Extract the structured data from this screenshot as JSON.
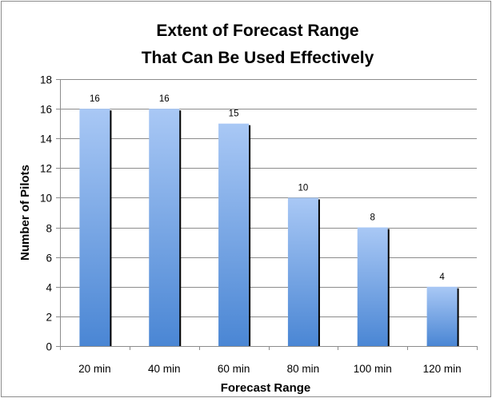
{
  "chart_data": {
    "type": "bar",
    "title": [
      "Extent of Forecast Range",
      "That Can Be Used Effectively"
    ],
    "xlabel": "Forecast Range",
    "ylabel": "Number of Pilots",
    "categories": [
      "20 min",
      "40 min",
      "60 min",
      "80 min",
      "100 min",
      "120 min"
    ],
    "values": [
      16,
      16,
      15,
      10,
      8,
      4
    ],
    "data_labels": [
      "16",
      "16",
      "15",
      "10",
      "8",
      "4"
    ],
    "ylim": [
      0,
      18
    ],
    "yticks": [
      0,
      2,
      4,
      6,
      8,
      10,
      12,
      14,
      16,
      18
    ],
    "grid": "horizontal",
    "legend": "none",
    "colors": {
      "bar_top": "#a9c8f5",
      "bar_bottom": "#4a86d4",
      "bar_shadow": "#000000",
      "gridline": "#8c8c8c",
      "axis": "#8c8c8c",
      "frame": "#8c8c8c"
    }
  }
}
